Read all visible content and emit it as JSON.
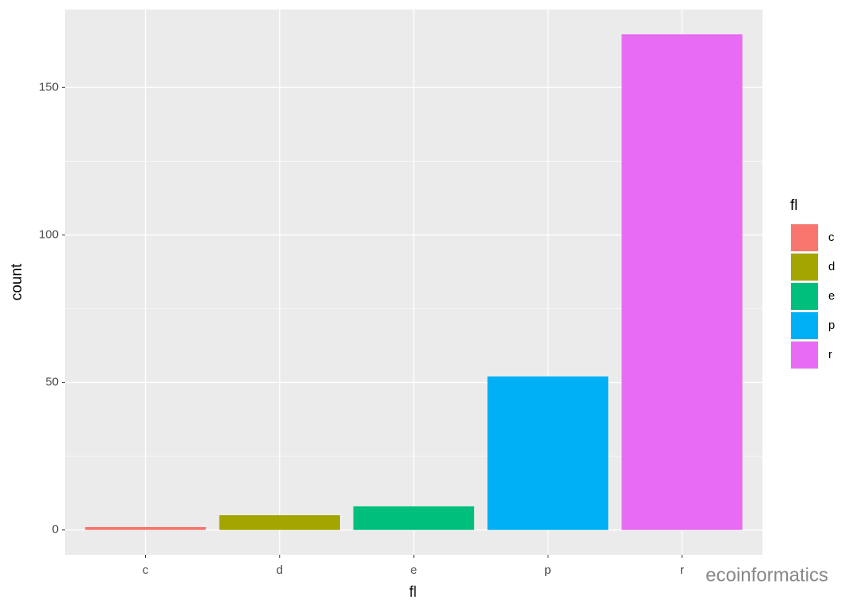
{
  "chart_data": {
    "type": "bar",
    "x_label": "fl",
    "y_label": "count",
    "legend_title": "fl",
    "categories": [
      "c",
      "d",
      "e",
      "p",
      "r"
    ],
    "values": [
      1,
      5,
      8,
      52,
      168
    ],
    "colors": [
      "#f8766d",
      "#a3a500",
      "#00bf7d",
      "#00b0f6",
      "#e76bf3"
    ],
    "ylim": [
      -8.4,
      176.4
    ],
    "yticks": [
      0,
      50,
      100,
      150
    ],
    "y_minor_grid": [
      25,
      75,
      125
    ],
    "grid": true,
    "legend": "right"
  },
  "watermark": "ecoinformatics"
}
